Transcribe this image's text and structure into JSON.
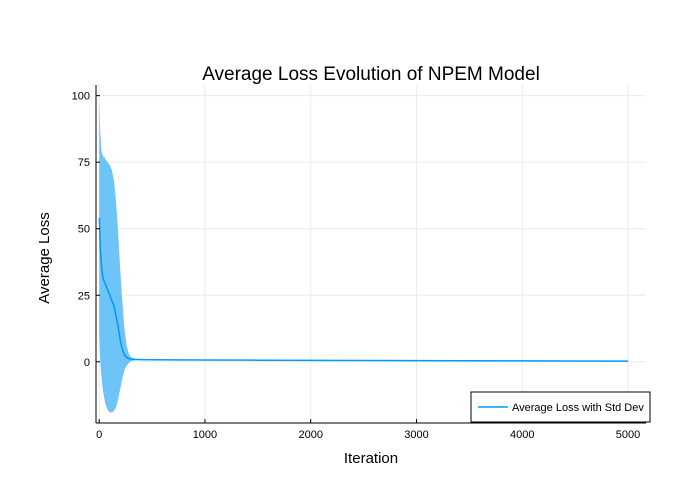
{
  "chart_data": {
    "type": "line",
    "title": "Average Loss Evolution of NPEM Model",
    "xlabel": "Iteration",
    "ylabel": "Average Loss",
    "xlim": [
      -30,
      5170
    ],
    "ylim": [
      -23,
      104
    ],
    "xticks": [
      0,
      1000,
      2000,
      3000,
      4000,
      5000
    ],
    "yticks": [
      0,
      25,
      50,
      75,
      100
    ],
    "x_tick_labels": [
      "0",
      "1000",
      "2000",
      "3000",
      "4000",
      "5000"
    ],
    "y_tick_labels": [
      "0",
      "25",
      "50",
      "75",
      "100"
    ],
    "grid": true,
    "legend_position": "bottom-right",
    "series": [
      {
        "name": "Average Loss with Std Dev",
        "color": "#009af9",
        "band_color": "#6ec3f7",
        "x": [
          1,
          5,
          10,
          20,
          30,
          40,
          50,
          60,
          80,
          100,
          120,
          140,
          160,
          180,
          200,
          220,
          240,
          260,
          280,
          300,
          330,
          360,
          400,
          500,
          700,
          1000,
          1500,
          2000,
          2500,
          3000,
          3500,
          4000,
          4500,
          5000
        ],
        "mean": [
          54,
          50,
          43,
          37,
          33,
          31,
          30,
          29,
          27,
          25,
          23,
          21,
          17,
          13,
          8,
          4.5,
          2.5,
          1.6,
          1.2,
          1.0,
          0.9,
          0.85,
          0.8,
          0.75,
          0.7,
          0.65,
          0.6,
          0.55,
          0.5,
          0.45,
          0.4,
          0.35,
          0.3,
          0.25
        ],
        "upper": [
          98,
          94,
          87,
          80,
          78,
          77,
          77,
          76,
          75,
          74,
          72,
          68,
          60,
          48,
          34,
          22,
          12,
          6,
          3,
          1.8,
          1.3,
          1.1,
          1.0,
          0.9,
          0.8,
          0.75,
          0.7,
          0.65,
          0.6,
          0.55,
          0.5,
          0.45,
          0.4,
          0.35
        ],
        "lower": [
          10,
          6,
          0,
          -5,
          -9,
          -12,
          -14,
          -16,
          -18,
          -19,
          -19,
          -18.5,
          -17,
          -14,
          -10,
          -6,
          -3,
          -1.5,
          -0.5,
          0.2,
          0.5,
          0.6,
          0.6,
          0.6,
          0.6,
          0.55,
          0.5,
          0.45,
          0.4,
          0.35,
          0.3,
          0.25,
          0.2,
          0.15
        ]
      }
    ]
  }
}
